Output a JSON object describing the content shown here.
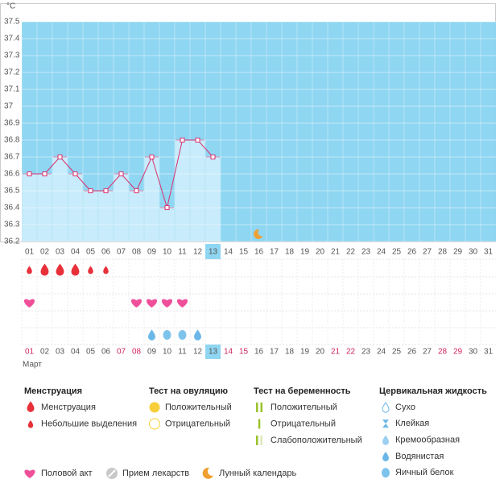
{
  "chart_data": {
    "type": "line",
    "unit": "°C",
    "categories": [
      "01",
      "02",
      "03",
      "04",
      "05",
      "06",
      "07",
      "08",
      "09",
      "10",
      "11",
      "12",
      "13",
      "14",
      "15",
      "16",
      "17",
      "18",
      "19",
      "20",
      "21",
      "22",
      "23",
      "24",
      "25",
      "26",
      "27",
      "28",
      "29",
      "30",
      "31"
    ],
    "values": [
      36.6,
      36.6,
      36.7,
      36.6,
      36.5,
      36.5,
      36.6,
      36.5,
      36.7,
      36.4,
      36.8,
      36.8,
      36.7,
      null,
      null,
      null,
      null,
      null,
      null,
      null,
      null,
      null,
      null,
      null,
      null,
      null,
      null,
      null,
      null,
      null,
      null
    ],
    "color": "#d92f6e",
    "bar_color": "#c8ecfb",
    "background_color": "#8fd6f2",
    "ylim": [
      36.2,
      37.5
    ],
    "yticks": [
      36.2,
      36.3,
      36.4,
      36.5,
      36.6,
      36.7,
      36.8,
      36.9,
      37,
      37.1,
      37.2,
      37.3,
      37.4,
      37.5
    ],
    "grid": true,
    "today": 13,
    "lunar_calendar_day": 16,
    "holidays": [
      1,
      7,
      8,
      14,
      15,
      21,
      22,
      28,
      29
    ],
    "menstruation": [
      1,
      0,
      0,
      0,
      1,
      1,
      null,
      null,
      null,
      null,
      null,
      null,
      null,
      null,
      null,
      null,
      null,
      null,
      null,
      null,
      null,
      null,
      null,
      null,
      null,
      null,
      null,
      null,
      null,
      null,
      null
    ],
    "intercourse": [
      1,
      null,
      null,
      null,
      null,
      null,
      null,
      1,
      1,
      1,
      1,
      null,
      null,
      null,
      null,
      null,
      null,
      null,
      null,
      null,
      null,
      null,
      null,
      null,
      null,
      null,
      null,
      null,
      null,
      null,
      null
    ],
    "cervical_fluid": [
      null,
      null,
      null,
      null,
      null,
      null,
      null,
      null,
      3,
      4,
      4,
      3,
      null,
      null,
      null,
      null,
      null,
      null,
      null,
      null,
      null,
      null,
      null,
      null,
      null,
      null,
      null,
      null,
      null,
      null,
      null
    ],
    "month": "Март"
  },
  "legend": {
    "sections": [
      {
        "title": "Менструация",
        "items": [
          "Менструация",
          "Небольшие выделения"
        ]
      },
      {
        "title": "Тест на овуляцию",
        "items": [
          "Положительный",
          "Отрицательный"
        ]
      },
      {
        "title": "Тест на беременность",
        "items": [
          "Положительный",
          "Отрицательный",
          "Слабоположительный"
        ]
      },
      {
        "title": "Цервикальная жидкость",
        "items": [
          "Сухо",
          "Клейкая",
          "Кремообразная",
          "Водянистая",
          "Яичный белок"
        ]
      }
    ],
    "extra": [
      "Половой акт",
      "Прием лекарств",
      "Лунный календарь"
    ]
  }
}
